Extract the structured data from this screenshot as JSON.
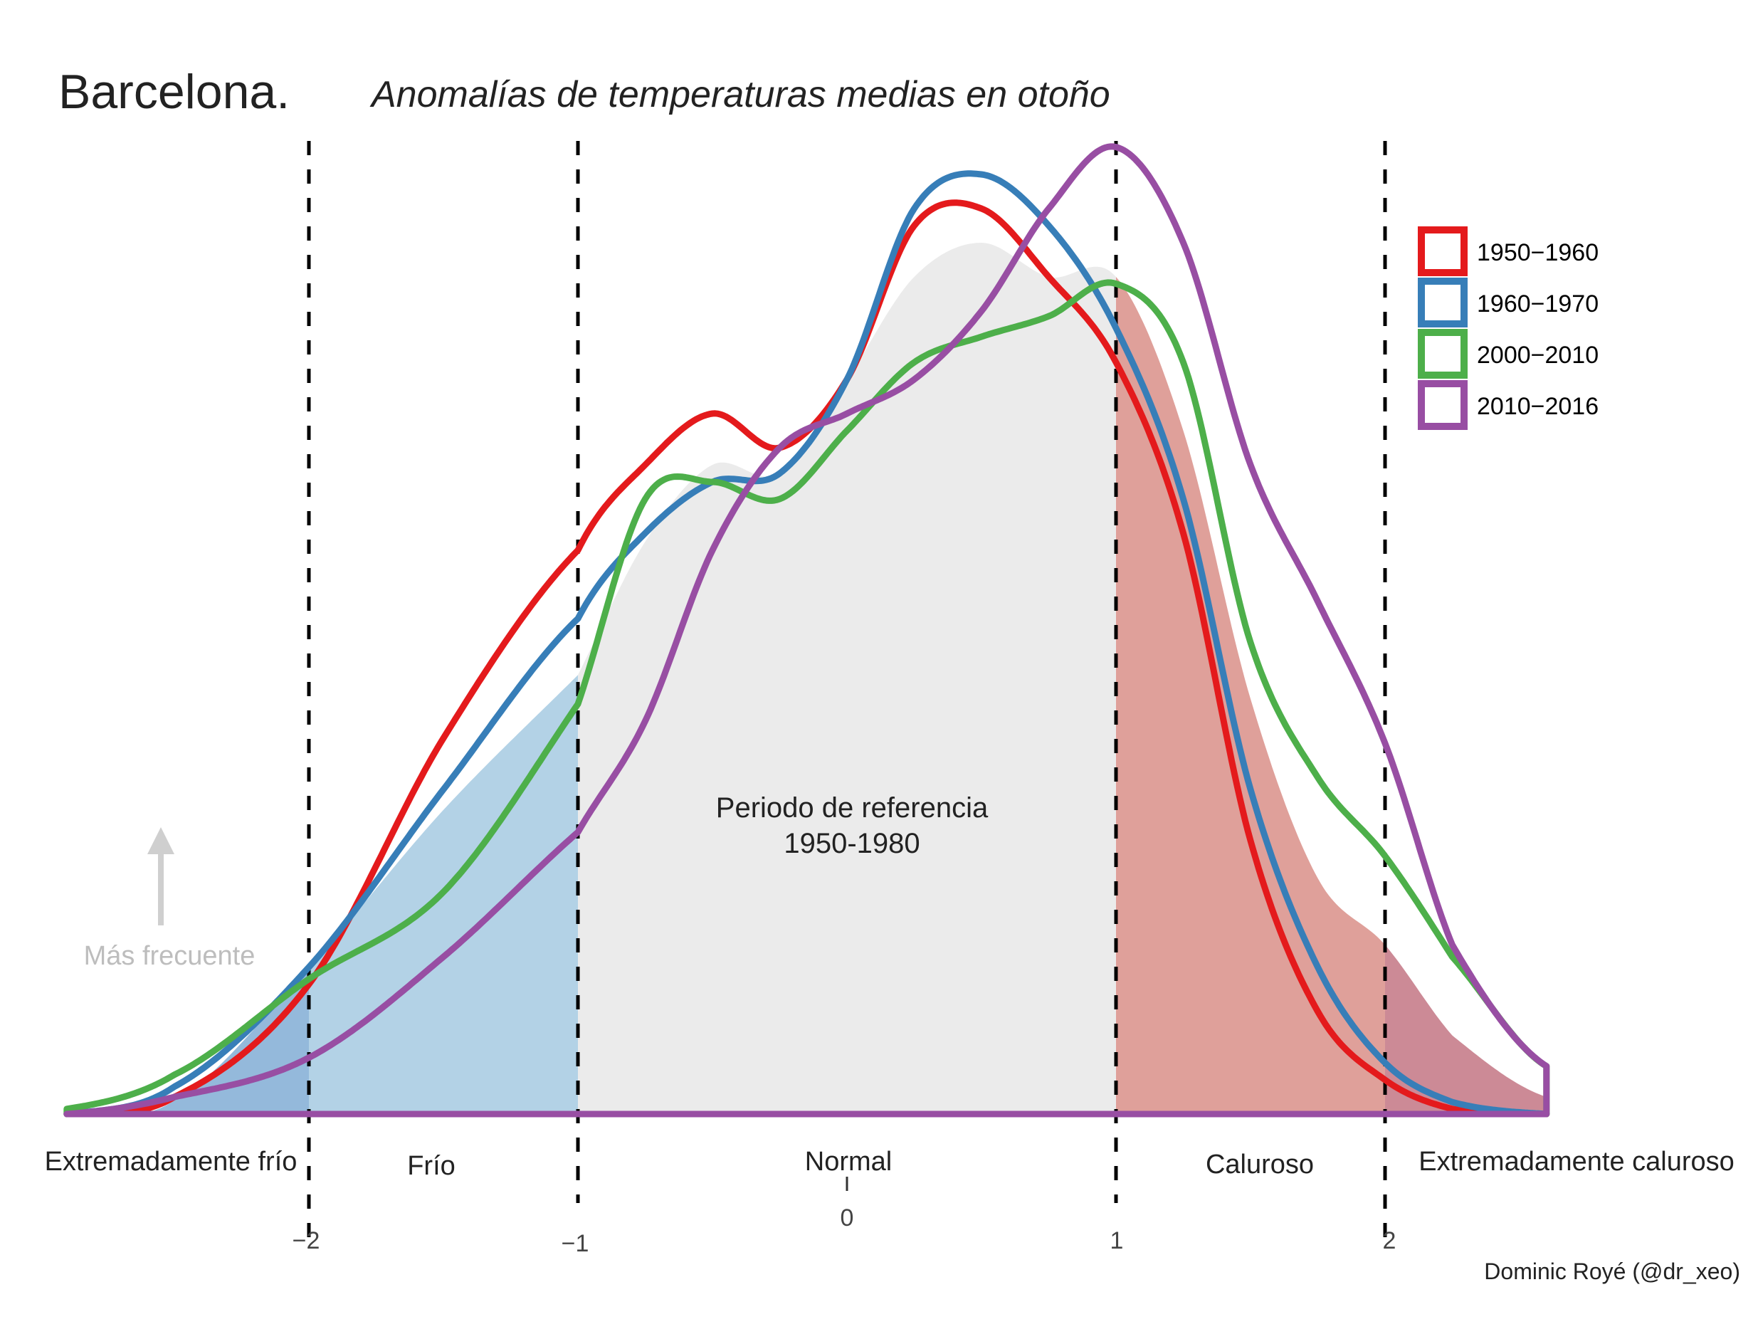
{
  "chart_data": {
    "type": "area",
    "title": "Barcelona.",
    "subtitle": "Anomalías de temperaturas medias en otoño",
    "xlabel": "",
    "ylabel": "",
    "xlim": [
      -2.9,
      2.6
    ],
    "ylim": [
      0,
      0.6
    ],
    "grid": false,
    "legend_position": "top-right",
    "x": [
      -2.9,
      -2.5,
      -2,
      -1.5,
      -1,
      -0.75,
      -0.5,
      -0.25,
      0,
      0.25,
      0.5,
      0.75,
      1,
      1.25,
      1.5,
      1.75,
      2,
      2.25,
      2.6
    ],
    "x_ticks": [
      {
        "value": -2,
        "label": "−2"
      },
      {
        "value": -1,
        "label": "−1"
      },
      {
        "value": 0,
        "label": "0"
      },
      {
        "value": 1,
        "label": "1"
      },
      {
        "value": 2,
        "label": "2"
      }
    ],
    "thresholds": [
      -2,
      -1,
      1,
      2
    ],
    "reference": {
      "name": "Periodo de referencia 1950-1980",
      "label_line1": "Periodo de referencia",
      "label_line2": "1950-1980",
      "values": [
        0,
        0.008,
        0.086,
        0.178,
        0.257,
        0.335,
        0.38,
        0.375,
        0.43,
        0.49,
        0.51,
        0.49,
        0.49,
        0.4,
        0.243,
        0.138,
        0.099,
        0.046,
        0.01
      ],
      "colors": {
        "extreme_cold": "#94b9db",
        "cold": "#b3d2e6",
        "normal": "#ebebeb",
        "hot": "#dfa09a",
        "extreme_hot": "#cc8a96"
      }
    },
    "series": [
      {
        "name": "1950−1960",
        "color": "#e41a1c",
        "values": [
          0,
          0.01,
          0.076,
          0.22,
          0.33,
          0.38,
          0.41,
          0.39,
          0.43,
          0.52,
          0.53,
          0.49,
          0.44,
          0.34,
          0.16,
          0.06,
          0.02,
          0.003,
          0
        ]
      },
      {
        "name": "1960−1970",
        "color": "#377eb8",
        "values": [
          0,
          0.016,
          0.086,
          0.19,
          0.29,
          0.34,
          0.37,
          0.375,
          0.43,
          0.53,
          0.55,
          0.52,
          0.46,
          0.36,
          0.19,
          0.086,
          0.03,
          0.007,
          0
        ]
      },
      {
        "name": "2000−2010",
        "color": "#4daf4a",
        "values": [
          0.003,
          0.023,
          0.079,
          0.13,
          0.24,
          0.36,
          0.37,
          0.36,
          0.4,
          0.44,
          0.455,
          0.467,
          0.486,
          0.44,
          0.276,
          0.197,
          0.151,
          0.092,
          0.028
        ]
      },
      {
        "name": "2010−2016",
        "color": "#984ea3",
        "values": [
          0,
          0.01,
          0.033,
          0.092,
          0.165,
          0.23,
          0.33,
          0.39,
          0.41,
          0.43,
          0.47,
          0.53,
          0.566,
          0.51,
          0.38,
          0.3,
          0.217,
          0.099,
          0.028
        ]
      }
    ],
    "categories": [
      {
        "label": "Extremadamente frío",
        "center": -2.5
      },
      {
        "label": "Frío",
        "center": -1.55
      },
      {
        "label": "Normal",
        "center": 0
      },
      {
        "label": "Caluroso",
        "center": 1.53
      },
      {
        "label": "Extremadamente caluroso",
        "center": 2.7
      }
    ],
    "annotations": {
      "frequency_hint": "Más frecuente",
      "credit": "Dominic Royé (@dr_xeo)"
    }
  }
}
